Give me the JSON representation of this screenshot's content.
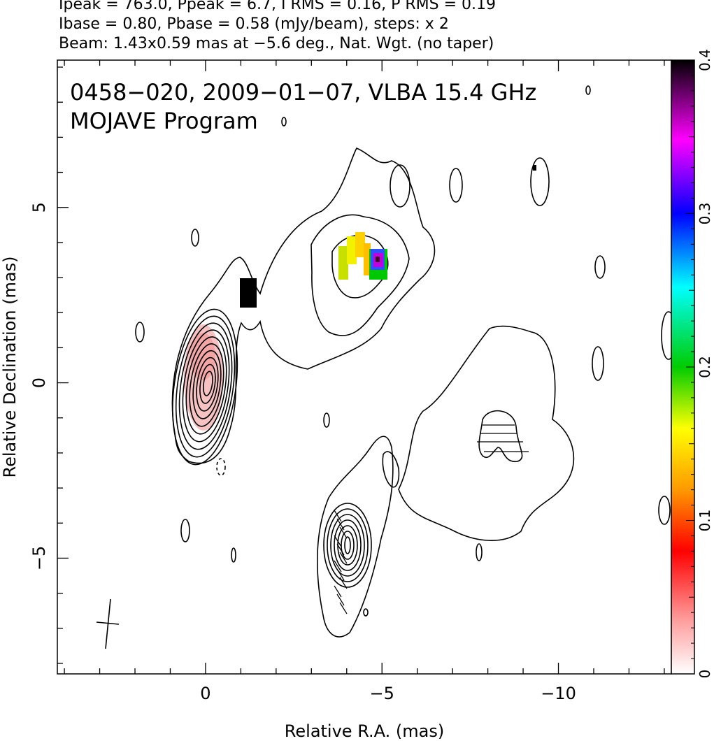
{
  "header": {
    "line1": "Ipeak = 763.0, Ppeak = 6.7, I RMS = 0.16, P RMS = 0.19",
    "line2": "Ibase = 0.80, Pbase = 0.58 (mJy/beam), steps: x 2",
    "line3": "Beam: 1.43x0.59 mas at −5.6 deg., Nat. Wgt. (no taper)"
  },
  "chart_data": {
    "type": "heatmap",
    "title": "0458−020, 2009−01−07, VLBA 15.4 GHz",
    "subtitle": "MOJAVE Program",
    "xlabel": "Relative R.A. (mas)",
    "ylabel": "Relative Declination (mas)",
    "xlim": [
      4.2,
      -13.2
    ],
    "ylim": [
      -8.3,
      9.2
    ],
    "x_ticks": [
      {
        "value": 0,
        "label": "0"
      },
      {
        "value": -5,
        "label": "−5"
      },
      {
        "value": -10,
        "label": "−10"
      }
    ],
    "y_ticks": [
      {
        "value": 5,
        "label": "5"
      },
      {
        "value": 0,
        "label": "0"
      },
      {
        "value": -5,
        "label": "−5"
      }
    ],
    "colorbar": {
      "range": [
        0,
        0.4
      ],
      "ticks": [
        {
          "value": 0,
          "label": "0"
        },
        {
          "value": 0.1,
          "label": "0.1"
        },
        {
          "value": 0.2,
          "label": "0.2"
        },
        {
          "value": 0.3,
          "label": "0.3"
        },
        {
          "value": 0.4,
          "label": "0.4"
        }
      ],
      "stops": [
        "#ffffff",
        "#ff9a9a",
        "#ff0000",
        "#ff9900",
        "#ffff00",
        "#00cc00",
        "#00ffff",
        "#0000ff",
        "#ff00ff",
        "#000000"
      ]
    },
    "core": {
      "x": 0,
      "y": 0
    },
    "contour_levels_count": 10,
    "beam": {
      "major_mas": 1.43,
      "minor_mas": 0.59,
      "pa_deg": -5.6
    }
  }
}
